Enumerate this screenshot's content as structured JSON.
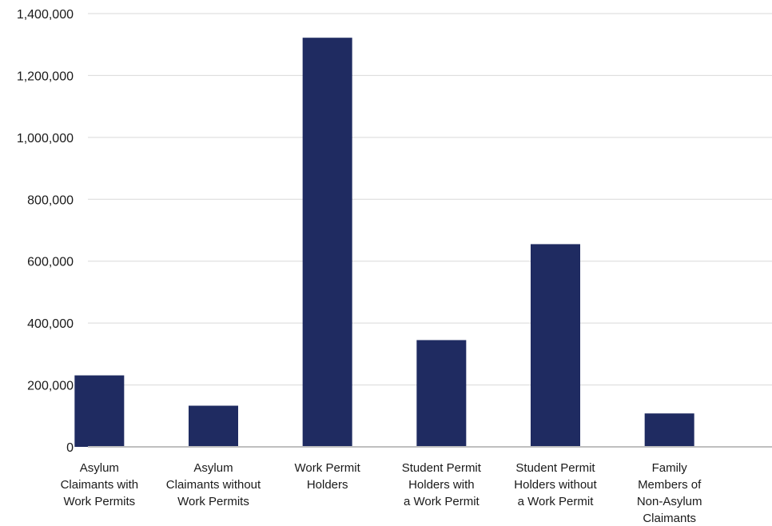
{
  "chart_data": {
    "type": "bar",
    "categories": [
      "Asylum Claimants with Work Permits",
      "Asylum Claimants without Work Permits",
      "Work Permit Holders",
      "Student Permit Holders with a Work Permit",
      "Student Permit Holders without a Work Permit",
      "Family Members of Non-Asylum Claimants"
    ],
    "category_lines": [
      [
        "Asylum",
        "Claimants with",
        "Work Permits"
      ],
      [
        "Asylum",
        "Claimants without",
        "Work Permits"
      ],
      [
        "Work Permit",
        "Holders"
      ],
      [
        "Student Permit",
        "Holders with",
        "a Work Permit"
      ],
      [
        "Student Permit",
        "Holders without",
        "a Work Permit"
      ],
      [
        "Family",
        "Members of",
        "Non-Asylum",
        "Claimants"
      ]
    ],
    "values": [
      231000,
      133000,
      1322000,
      345000,
      655000,
      108000
    ],
    "ylim": [
      0,
      1400000
    ],
    "yticks": [
      0,
      200000,
      400000,
      600000,
      800000,
      1000000,
      1200000,
      1400000
    ],
    "ytick_labels": [
      "0",
      "200,000",
      "400,000",
      "600,000",
      "800,000",
      "1,000,000",
      "1,200,000",
      "1,400,000"
    ],
    "title": "",
    "xlabel": "",
    "ylabel": "",
    "grid": true,
    "legend": "none",
    "bar_color": "#1f2b61"
  }
}
